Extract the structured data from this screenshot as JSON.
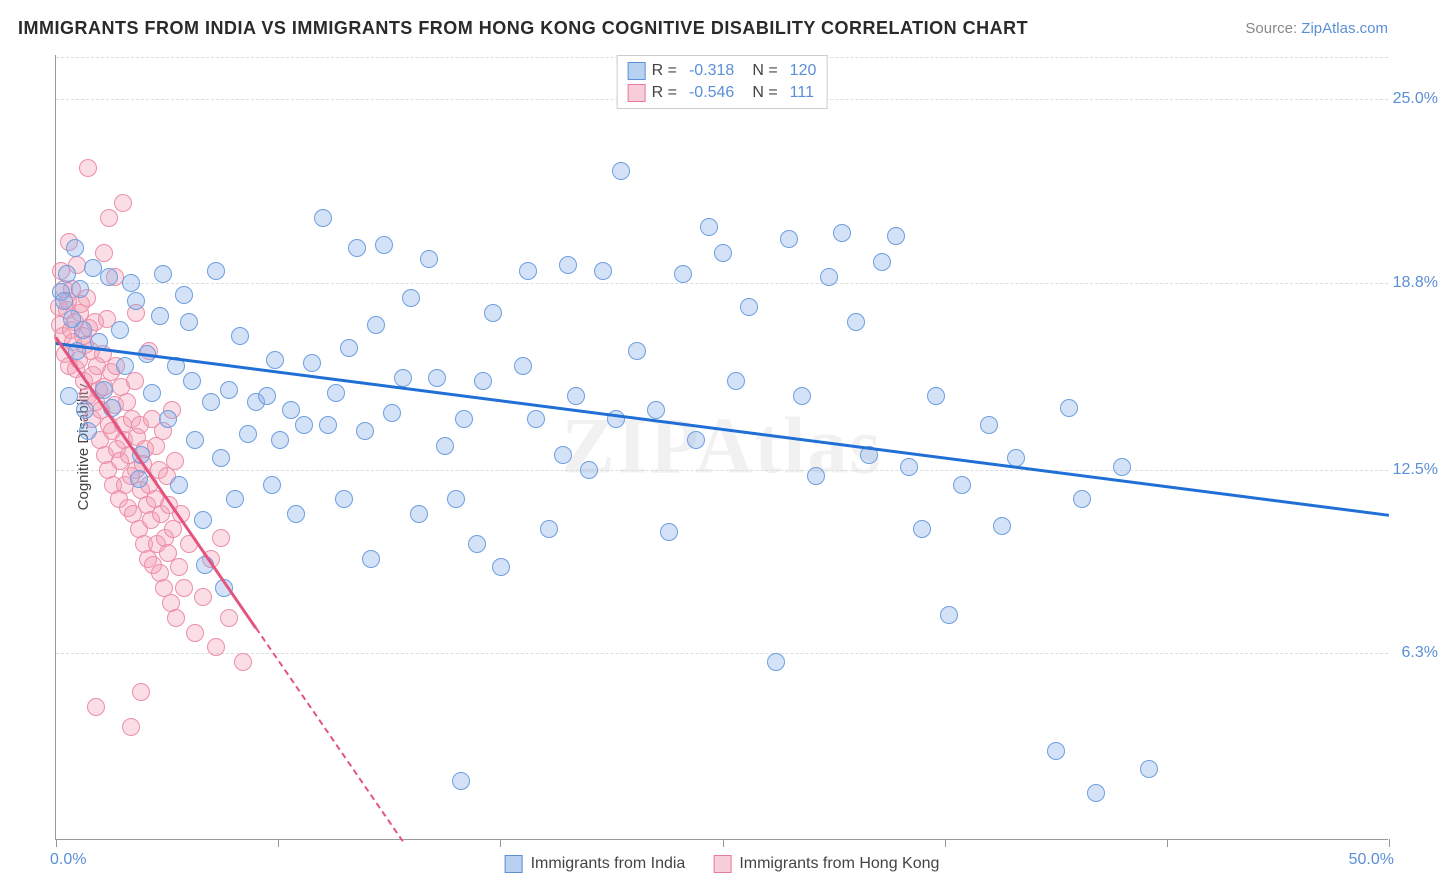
{
  "title": "IMMIGRANTS FROM INDIA VS IMMIGRANTS FROM HONG KONG COGNITIVE DISABILITY CORRELATION CHART",
  "source_prefix": "Source: ",
  "source_link": "ZipAtlas.com",
  "watermark": "ZIPAtlas",
  "yaxis_title": "Cognitive Disability",
  "chart": {
    "type": "scatter",
    "xlim": [
      0,
      50
    ],
    "ylim": [
      0,
      26.5
    ],
    "y_gridlines": [
      6.3,
      12.5,
      18.8,
      25.0
    ],
    "y_tick_labels": [
      "6.3%",
      "12.5%",
      "18.8%",
      "25.0%"
    ],
    "x_ticks_at": [
      0,
      8.33,
      16.67,
      25,
      33.33,
      41.67,
      50
    ],
    "xlim_labels": {
      "min": "0.0%",
      "max": "50.0%"
    },
    "background_color": "#ffffff",
    "grid_color": "#dddddd",
    "point_radius": 9,
    "series": [
      {
        "name": "Immigrants from India",
        "fill": "rgba(133,173,233,0.35)",
        "stroke": "#6d9fe0",
        "swatch_fill": "#b9d1f0",
        "swatch_border": "#5b8fd6",
        "R": "-0.318",
        "N": "120",
        "trend": {
          "x1": 0,
          "y1": 16.8,
          "x2": 50,
          "y2": 11.0,
          "color": "#1f6fd6",
          "solid_until_x": 50
        },
        "points": [
          [
            0.2,
            18.5
          ],
          [
            0.4,
            19.1
          ],
          [
            0.3,
            18.2
          ],
          [
            0.6,
            17.6
          ],
          [
            0.7,
            20.0
          ],
          [
            1.0,
            17.2
          ],
          [
            0.5,
            15.0
          ],
          [
            0.9,
            18.6
          ],
          [
            1.4,
            19.3
          ],
          [
            1.6,
            16.8
          ],
          [
            1.2,
            13.8
          ],
          [
            1.8,
            15.2
          ],
          [
            2.0,
            19.0
          ],
          [
            2.4,
            17.2
          ],
          [
            2.1,
            14.6
          ],
          [
            2.6,
            16.0
          ],
          [
            2.8,
            18.8
          ],
          [
            3.0,
            18.2
          ],
          [
            3.2,
            13.0
          ],
          [
            3.4,
            16.4
          ],
          [
            3.6,
            15.1
          ],
          [
            3.9,
            17.7
          ],
          [
            4.0,
            19.1
          ],
          [
            4.2,
            14.2
          ],
          [
            4.5,
            16.0
          ],
          [
            4.8,
            18.4
          ],
          [
            5.0,
            17.5
          ],
          [
            5.2,
            13.5
          ],
          [
            5.5,
            10.8
          ],
          [
            5.8,
            14.8
          ],
          [
            4.6,
            12.0
          ],
          [
            5.1,
            15.5
          ],
          [
            6.0,
            19.2
          ],
          [
            6.2,
            12.9
          ],
          [
            6.5,
            15.2
          ],
          [
            6.7,
            11.5
          ],
          [
            6.9,
            17.0
          ],
          [
            7.2,
            13.7
          ],
          [
            7.5,
            14.8
          ],
          [
            7.9,
            15.0
          ],
          [
            8.1,
            12.0
          ],
          [
            8.4,
            13.5
          ],
          [
            8.2,
            16.2
          ],
          [
            8.8,
            14.5
          ],
          [
            9.0,
            11.0
          ],
          [
            9.3,
            14.0
          ],
          [
            9.6,
            16.1
          ],
          [
            5.6,
            9.3
          ],
          [
            10.0,
            21.0
          ],
          [
            10.2,
            14.0
          ],
          [
            10.5,
            15.1
          ],
          [
            10.8,
            11.5
          ],
          [
            11.0,
            16.6
          ],
          [
            11.3,
            20.0
          ],
          [
            11.6,
            13.8
          ],
          [
            11.8,
            9.5
          ],
          [
            12.0,
            17.4
          ],
          [
            12.3,
            20.1
          ],
          [
            12.6,
            14.4
          ],
          [
            13.0,
            15.6
          ],
          [
            13.3,
            18.3
          ],
          [
            13.6,
            11.0
          ],
          [
            14.0,
            19.6
          ],
          [
            14.3,
            15.6
          ],
          [
            14.6,
            13.3
          ],
          [
            15.0,
            11.5
          ],
          [
            15.3,
            14.2
          ],
          [
            15.8,
            10.0
          ],
          [
            16.0,
            15.5
          ],
          [
            16.4,
            17.8
          ],
          [
            16.7,
            9.2
          ],
          [
            15.2,
            2.0
          ],
          [
            17.5,
            16.0
          ],
          [
            17.7,
            19.2
          ],
          [
            18.0,
            14.2
          ],
          [
            18.5,
            10.5
          ],
          [
            19.0,
            13.0
          ],
          [
            19.2,
            19.4
          ],
          [
            19.5,
            15.0
          ],
          [
            20.0,
            12.5
          ],
          [
            20.5,
            19.2
          ],
          [
            21.0,
            14.2
          ],
          [
            21.2,
            22.6
          ],
          [
            21.8,
            16.5
          ],
          [
            22.5,
            14.5
          ],
          [
            23.0,
            10.4
          ],
          [
            23.5,
            19.1
          ],
          [
            24.0,
            13.5
          ],
          [
            24.5,
            20.7
          ],
          [
            25.0,
            19.8
          ],
          [
            25.5,
            15.5
          ],
          [
            26.0,
            18.0
          ],
          [
            27.0,
            6.0
          ],
          [
            27.5,
            20.3
          ],
          [
            28.0,
            15.0
          ],
          [
            28.5,
            12.3
          ],
          [
            29.0,
            19.0
          ],
          [
            29.5,
            20.5
          ],
          [
            30.0,
            17.5
          ],
          [
            30.5,
            13.0
          ],
          [
            31.0,
            19.5
          ],
          [
            32.0,
            12.6
          ],
          [
            32.5,
            10.5
          ],
          [
            33.0,
            15.0
          ],
          [
            33.5,
            7.6
          ],
          [
            34.0,
            12.0
          ],
          [
            35.0,
            14.0
          ],
          [
            35.5,
            10.6
          ],
          [
            36.0,
            12.9
          ],
          [
            31.5,
            20.4
          ],
          [
            37.5,
            3.0
          ],
          [
            38.0,
            14.6
          ],
          [
            38.5,
            11.5
          ],
          [
            39.0,
            1.6
          ],
          [
            40.0,
            12.6
          ],
          [
            41.0,
            2.4
          ],
          [
            0.8,
            16.5
          ],
          [
            1.1,
            14.5
          ],
          [
            3.1,
            12.2
          ],
          [
            6.3,
            8.5
          ]
        ]
      },
      {
        "name": "Immigrants from Hong Kong",
        "fill": "rgba(244,157,181,0.35)",
        "stroke": "#ec8fa8",
        "swatch_fill": "#f7cdd9",
        "swatch_border": "#e97a99",
        "R": "-0.546",
        "N": "111",
        "trend": {
          "x1": 0,
          "y1": 17.0,
          "x2": 13,
          "y2": 0,
          "color": "#e4557e",
          "solid_until_x": 7.5
        },
        "points": [
          [
            0.1,
            18.0
          ],
          [
            0.15,
            17.4
          ],
          [
            0.2,
            19.2
          ],
          [
            0.25,
            17.0
          ],
          [
            0.3,
            18.6
          ],
          [
            0.35,
            16.4
          ],
          [
            0.4,
            17.9
          ],
          [
            0.45,
            18.2
          ],
          [
            0.5,
            16.0
          ],
          [
            0.55,
            17.2
          ],
          [
            0.6,
            18.6
          ],
          [
            0.65,
            16.8
          ],
          [
            0.7,
            17.5
          ],
          [
            0.75,
            15.9
          ],
          [
            0.8,
            19.4
          ],
          [
            0.85,
            16.2
          ],
          [
            0.9,
            17.8
          ],
          [
            0.95,
            18.1
          ],
          [
            1.0,
            17.0
          ],
          [
            1.05,
            15.5
          ],
          [
            1.1,
            16.7
          ],
          [
            1.15,
            18.3
          ],
          [
            1.2,
            15.0
          ],
          [
            1.25,
            17.3
          ],
          [
            1.3,
            16.5
          ],
          [
            1.35,
            14.2
          ],
          [
            1.4,
            15.7
          ],
          [
            1.45,
            17.5
          ],
          [
            1.5,
            14.8
          ],
          [
            1.55,
            16.0
          ],
          [
            1.6,
            15.2
          ],
          [
            1.65,
            13.5
          ],
          [
            1.7,
            14.5
          ],
          [
            1.75,
            16.4
          ],
          [
            1.8,
            15.3
          ],
          [
            1.85,
            13.0
          ],
          [
            1.9,
            17.6
          ],
          [
            1.95,
            12.5
          ],
          [
            2.0,
            14.0
          ],
          [
            2.05,
            15.8
          ],
          [
            2.1,
            13.8
          ],
          [
            2.15,
            12.0
          ],
          [
            2.2,
            14.7
          ],
          [
            2.25,
            16.0
          ],
          [
            2.3,
            13.2
          ],
          [
            2.35,
            11.5
          ],
          [
            2.4,
            12.8
          ],
          [
            2.45,
            15.3
          ],
          [
            2.5,
            14.0
          ],
          [
            2.55,
            13.5
          ],
          [
            2.6,
            12.0
          ],
          [
            2.65,
            14.8
          ],
          [
            2.7,
            11.2
          ],
          [
            2.75,
            13.0
          ],
          [
            2.8,
            12.3
          ],
          [
            2.85,
            14.2
          ],
          [
            2.9,
            11.0
          ],
          [
            2.95,
            15.5
          ],
          [
            3.0,
            12.5
          ],
          [
            3.05,
            13.6
          ],
          [
            3.1,
            10.5
          ],
          [
            3.15,
            14.0
          ],
          [
            3.2,
            11.8
          ],
          [
            3.25,
            12.7
          ],
          [
            3.3,
            10.0
          ],
          [
            3.35,
            13.2
          ],
          [
            3.4,
            11.3
          ],
          [
            3.45,
            9.5
          ],
          [
            3.5,
            12.0
          ],
          [
            3.55,
            10.8
          ],
          [
            3.6,
            14.2
          ],
          [
            3.65,
            9.3
          ],
          [
            3.7,
            11.5
          ],
          [
            3.75,
            13.3
          ],
          [
            3.8,
            10.0
          ],
          [
            3.85,
            12.5
          ],
          [
            3.9,
            9.0
          ],
          [
            3.95,
            11.0
          ],
          [
            4.0,
            13.8
          ],
          [
            4.05,
            8.5
          ],
          [
            4.1,
            10.2
          ],
          [
            4.15,
            12.3
          ],
          [
            4.2,
            9.7
          ],
          [
            4.25,
            11.3
          ],
          [
            4.3,
            8.0
          ],
          [
            4.35,
            14.5
          ],
          [
            4.4,
            10.5
          ],
          [
            4.45,
            12.8
          ],
          [
            4.5,
            7.5
          ],
          [
            4.6,
            9.2
          ],
          [
            4.7,
            11.0
          ],
          [
            4.8,
            8.5
          ],
          [
            5.0,
            10.0
          ],
          [
            5.2,
            7.0
          ],
          [
            5.5,
            8.2
          ],
          [
            5.8,
            9.5
          ],
          [
            6.0,
            6.5
          ],
          [
            6.2,
            10.2
          ],
          [
            6.5,
            7.5
          ],
          [
            7.0,
            6.0
          ],
          [
            1.5,
            4.5
          ],
          [
            2.8,
            3.8
          ],
          [
            3.2,
            5.0
          ],
          [
            1.2,
            22.7
          ],
          [
            2.0,
            21.0
          ],
          [
            2.5,
            21.5
          ],
          [
            0.5,
            20.2
          ],
          [
            1.8,
            19.8
          ],
          [
            2.2,
            19.0
          ],
          [
            3.0,
            17.8
          ],
          [
            3.5,
            16.5
          ]
        ]
      }
    ]
  }
}
